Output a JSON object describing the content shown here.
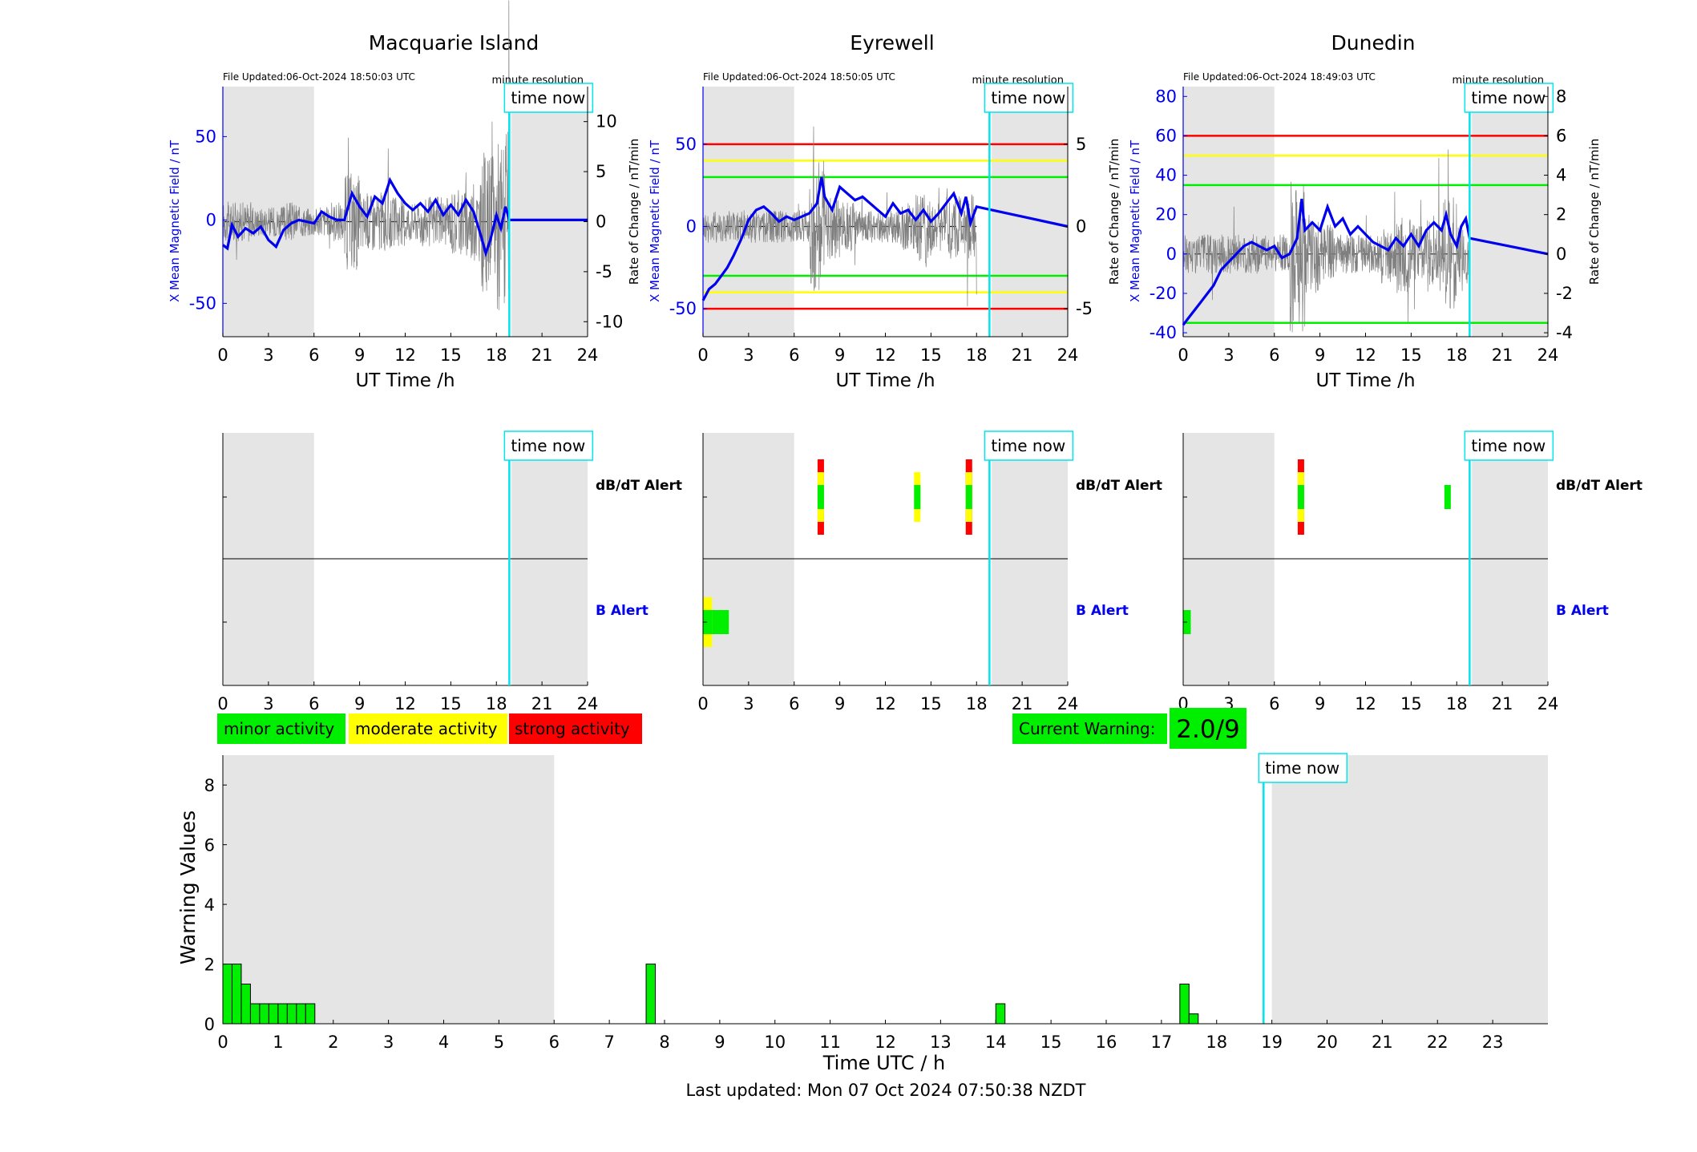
{
  "labels": {
    "time_now": "time now",
    "minute_resolution": "minute resolution",
    "ut_time": "UT Time /h",
    "y_left": "X Mean Magnetic Field / nT",
    "y_right": "Rate of Change / nT/min",
    "dbdt_alert": "dB/dT Alert",
    "b_alert": "B Alert",
    "warning_axis": "Warning Values",
    "time_utc": "Time UTC / h",
    "last_updated": "Last updated: Mon 07 Oct 2024 07:50:38 NZDT"
  },
  "legend": {
    "minor": "minor activity",
    "moderate": "moderate activity",
    "strong": "strong activity"
  },
  "current_warning": {
    "label": "Current Warning:",
    "value": "2.0/9"
  },
  "colors": {
    "minor": "#00ee00",
    "moderate": "#ffff00",
    "strong": "#ff0000",
    "field": "#0000ee",
    "rate": "#7f7f7f",
    "time_now": "#00e5ee",
    "shade": "#e5e5e5"
  },
  "chart_data": [
    {
      "type": "line",
      "title": "Macquarie Island",
      "file_updated": "File Updated:06-Oct-2024 18:50:03 UTC",
      "x_ticks": [
        0,
        3,
        6,
        9,
        12,
        15,
        18,
        21,
        24
      ],
      "left_ticks": [
        -50,
        0,
        50
      ],
      "left_range": [
        -70,
        80
      ],
      "right_ticks": [
        -10,
        -5,
        0,
        5,
        10
      ],
      "right_range": [
        -11.5,
        13.5
      ],
      "thresholds": [],
      "time_now": 18.85,
      "night_shade": [
        [
          0,
          6
        ],
        [
          19,
          24
        ]
      ],
      "last_data": 18.85,
      "field_series": {
        "name": "X Mean Magnetic Field",
        "x": [
          0,
          0.3,
          0.6,
          1,
          1.5,
          2,
          2.5,
          3,
          3.5,
          4,
          4.5,
          5,
          5.5,
          6,
          6.5,
          7,
          7.5,
          8,
          8.5,
          9,
          9.5,
          10,
          10.5,
          11,
          11.5,
          12,
          12.5,
          13,
          13.5,
          14,
          14.5,
          15,
          15.5,
          16,
          16.5,
          17,
          17.3,
          17.6,
          18,
          18.3,
          18.6,
          18.85,
          24
        ],
        "y": [
          -15,
          -17,
          -3,
          -10,
          -5,
          -8,
          -4,
          -12,
          -16,
          -6,
          -2,
          0,
          -1,
          -2,
          5,
          2,
          0,
          0,
          16,
          8,
          2,
          14,
          10,
          24,
          16,
          10,
          6,
          10,
          5,
          12,
          3,
          9,
          3,
          12,
          5,
          -10,
          -20,
          -12,
          3,
          -5,
          8,
          0,
          0
        ]
      },
      "rate_series": {
        "name": "Rate of Change",
        "amplitude_by_hour": [
          2,
          2,
          1.5,
          1.5,
          2,
          1.5,
          1.5,
          2,
          5,
          3,
          3,
          2.5,
          2,
          2.5,
          2.5,
          3.5,
          4,
          7,
          9,
          0
        ]
      },
      "baseline": 0
    },
    {
      "type": "line",
      "title": "Eyrewell",
      "file_updated": "File Updated:06-Oct-2024 18:50:05 UTC",
      "x_ticks": [
        0,
        3,
        6,
        9,
        12,
        15,
        18,
        21,
        24
      ],
      "left_ticks": [
        -50,
        0,
        50
      ],
      "left_range": [
        -67,
        85
      ],
      "right_ticks": [
        -5,
        0,
        5
      ],
      "right_range": [
        -6.7,
        8.5
      ],
      "thresholds": [
        {
          "level": 5,
          "color": "strong"
        },
        {
          "level": 4,
          "color": "moderate"
        },
        {
          "level": 3,
          "color": "minor"
        },
        {
          "level": -3,
          "color": "minor"
        },
        {
          "level": -4,
          "color": "moderate"
        },
        {
          "level": -5,
          "color": "strong"
        }
      ],
      "time_now": 18.85,
      "night_shade": [
        [
          0,
          6
        ],
        [
          19,
          24
        ]
      ],
      "last_data": 18.0,
      "field_series": {
        "name": "X Mean Magnetic Field",
        "x": [
          0,
          0.4,
          0.8,
          1.2,
          1.6,
          2,
          2.5,
          3,
          3.5,
          4,
          4.5,
          5,
          5.5,
          6,
          6.5,
          7,
          7.5,
          7.8,
          8,
          8.5,
          9,
          9.5,
          10,
          10.5,
          11,
          11.5,
          12,
          12.5,
          13,
          13.5,
          14,
          14.5,
          15,
          15.5,
          16,
          16.5,
          17,
          17.3,
          17.6,
          18,
          24
        ],
        "y": [
          -45,
          -38,
          -35,
          -30,
          -25,
          -18,
          -8,
          4,
          10,
          12,
          8,
          3,
          6,
          4,
          6,
          8,
          14,
          30,
          18,
          10,
          24,
          20,
          16,
          18,
          14,
          10,
          6,
          14,
          8,
          10,
          4,
          10,
          3,
          8,
          14,
          20,
          8,
          18,
          2,
          12,
          0
        ]
      },
      "rate_series": {
        "name": "Rate of Change",
        "amplitude_by_hour": [
          1,
          1,
          1,
          1,
          1,
          1,
          1,
          4,
          2,
          1.5,
          1,
          1,
          1,
          1.5,
          2.5,
          1.5,
          2,
          2,
          0,
          0
        ]
      },
      "baseline": 0
    },
    {
      "type": "line",
      "title": "Dunedin",
      "file_updated": "File Updated:06-Oct-2024 18:49:03 UTC",
      "x_ticks": [
        0,
        3,
        6,
        9,
        12,
        15,
        18,
        21,
        24
      ],
      "left_ticks": [
        -40,
        -20,
        0,
        20,
        40,
        60,
        80
      ],
      "left_range": [
        -42,
        85
      ],
      "right_ticks": [
        -4,
        -2,
        0,
        2,
        4,
        6,
        8
      ],
      "right_range": [
        -4.2,
        8.5
      ],
      "thresholds": [
        {
          "level": 6,
          "color": "strong"
        },
        {
          "level": 5,
          "color": "moderate"
        },
        {
          "level": 3.5,
          "color": "minor"
        },
        {
          "level": -3.5,
          "color": "minor"
        }
      ],
      "time_now": 18.85,
      "night_shade": [
        [
          0,
          6
        ],
        [
          19,
          24
        ]
      ],
      "last_data": 18.85,
      "field_series": {
        "name": "X Mean Magnetic Field",
        "x": [
          0,
          0.4,
          0.8,
          1.2,
          1.6,
          2,
          2.5,
          3,
          3.5,
          4,
          4.5,
          5,
          5.5,
          6,
          6.5,
          7,
          7.5,
          7.8,
          8,
          8.5,
          9,
          9.5,
          10,
          10.5,
          11,
          11.5,
          12,
          12.5,
          13,
          13.5,
          14,
          14.5,
          15,
          15.5,
          16,
          16.5,
          17,
          17.3,
          17.6,
          18,
          18.3,
          18.6,
          18.85,
          24
        ],
        "y": [
          -36,
          -32,
          -28,
          -24,
          -20,
          -16,
          -8,
          -4,
          0,
          4,
          6,
          4,
          2,
          4,
          -2,
          0,
          8,
          28,
          12,
          16,
          12,
          24,
          14,
          18,
          10,
          14,
          10,
          6,
          4,
          2,
          8,
          4,
          10,
          4,
          12,
          16,
          12,
          20,
          10,
          4,
          14,
          18,
          8,
          0
        ]
      },
      "rate_series": {
        "name": "Rate of Change",
        "amplitude_by_hour": [
          1,
          1,
          1,
          1,
          1,
          1,
          1,
          4,
          2,
          1.5,
          1,
          1,
          1,
          1.5,
          2,
          1.5,
          2,
          3,
          1.5,
          0
        ]
      },
      "baseline": 0
    },
    {
      "type": "bar",
      "title": "",
      "stations": [
        "Macquarie Island",
        "Eyrewell",
        "Dunedin"
      ],
      "x_ticks": [
        0,
        3,
        6,
        9,
        12,
        15,
        18,
        21,
        24
      ],
      "time_now": 18.85,
      "night_shade": [
        [
          0,
          6
        ],
        [
          19,
          24
        ]
      ],
      "rows": [
        "dB/dT Alert",
        "B Alert"
      ],
      "alert_bars": [
        [],
        [
          {
            "row": "dB/dT Alert",
            "x": 7.75,
            "levels": [
              "minor",
              "moderate",
              "strong"
            ]
          },
          {
            "row": "dB/dT Alert",
            "x": 14.1,
            "levels": [
              "minor",
              "moderate"
            ]
          },
          {
            "row": "dB/dT Alert",
            "x": 17.5,
            "levels": [
              "minor",
              "moderate",
              "strong"
            ]
          },
          {
            "row": "B Alert",
            "x0": 0,
            "x1": 0.6,
            "levels": [
              "minor",
              "moderate"
            ]
          },
          {
            "row": "B Alert",
            "x0": 0.6,
            "x1": 1.7,
            "levels": [
              "minor"
            ]
          }
        ],
        [
          {
            "row": "dB/dT Alert",
            "x": 7.75,
            "levels": [
              "minor",
              "moderate",
              "strong"
            ]
          },
          {
            "row": "dB/dT Alert",
            "x": 17.4,
            "levels": [
              "minor"
            ]
          },
          {
            "row": "B Alert",
            "x0": 0,
            "x1": 0.5,
            "levels": [
              "minor"
            ]
          }
        ]
      ]
    },
    {
      "type": "bar",
      "title": "",
      "xlabel": "Time UTC / h",
      "ylabel": "Warning Values",
      "x_ticks": [
        0,
        1,
        2,
        3,
        4,
        5,
        6,
        7,
        8,
        9,
        10,
        11,
        12,
        13,
        14,
        15,
        16,
        17,
        18,
        19,
        20,
        21,
        22,
        23
      ],
      "xlim": [
        0,
        24
      ],
      "y_ticks": [
        0,
        2,
        4,
        6,
        8
      ],
      "ylim": [
        0,
        9
      ],
      "time_now": 18.85,
      "night_shade": [
        [
          0,
          6
        ],
        [
          19,
          24
        ]
      ],
      "bin_width": 0.1667,
      "bars": [
        {
          "x": 0.0,
          "value": 2.0
        },
        {
          "x": 0.1667,
          "value": 2.0
        },
        {
          "x": 0.3333,
          "value": 1.33
        },
        {
          "x": 0.5,
          "value": 0.67
        },
        {
          "x": 0.6667,
          "value": 0.67
        },
        {
          "x": 0.8333,
          "value": 0.67
        },
        {
          "x": 1.0,
          "value": 0.67
        },
        {
          "x": 1.1667,
          "value": 0.67
        },
        {
          "x": 1.3333,
          "value": 0.67
        },
        {
          "x": 1.5,
          "value": 0.67
        },
        {
          "x": 7.6667,
          "value": 2.0
        },
        {
          "x": 14.0,
          "value": 0.67
        },
        {
          "x": 17.3333,
          "value": 1.33
        },
        {
          "x": 17.5,
          "value": 0.33
        }
      ]
    }
  ]
}
